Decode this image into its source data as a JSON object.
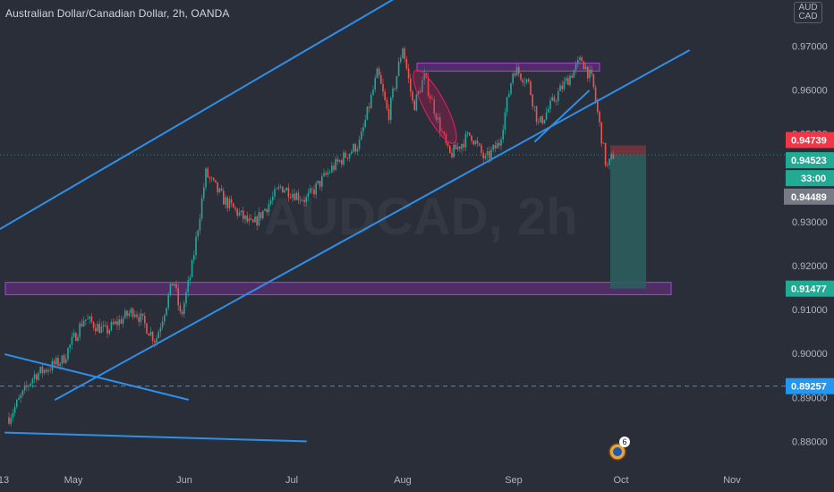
{
  "header": {
    "title": "Australian Dollar/Canadian Dollar, 2h, OANDA",
    "currency_lines": [
      "AUD",
      "CAD"
    ]
  },
  "watermark": "AUDCAD, 2h",
  "colors": {
    "background": "#2a2e39",
    "axis_text": "#b2b5be",
    "trendline": "#2f8fe8",
    "zone_fill": "#7a2f9a",
    "zone_stroke": "#b040e0",
    "candle_up": "#26a69a",
    "candle_down": "#ef5350",
    "stop_zone": "#7a3540",
    "target_zone": "#2e5d5e",
    "badge_red": "#f23645",
    "badge_teal": "#22ab94",
    "badge_gray": "#787b86",
    "badge_blue": "#2196f3"
  },
  "chart_data": {
    "type": "candlestick",
    "symbol": "AUDCAD",
    "timeframe": "2h",
    "y_axis": {
      "ticks": [
        "0.97000",
        "0.96000",
        "0.95000",
        "0.94000",
        "0.93000",
        "0.92000",
        "0.91000",
        "0.90000",
        "0.89000",
        "0.88000"
      ],
      "range": [
        0.8755,
        0.9755
      ]
    },
    "x_axis": {
      "labels": [
        "13",
        "May",
        "Jun",
        "Jul",
        "Aug",
        "Sep",
        "Oct",
        "Nov"
      ]
    },
    "price_path": [
      [
        "Apr 13",
        0.8855
      ],
      [
        "Apr 20",
        0.895
      ],
      [
        "Apr 28",
        0.8985
      ],
      [
        "May 4",
        0.908
      ],
      [
        "May 10",
        0.905
      ],
      [
        "May 18",
        0.91
      ],
      [
        "May 24",
        0.903
      ],
      [
        "May 29",
        0.917
      ],
      [
        "May 31",
        0.908
      ],
      [
        "Jun 3",
        0.919
      ],
      [
        "Jun 5",
        0.93
      ],
      [
        "Jun 7",
        0.941
      ],
      [
        "Jun 12",
        0.935
      ],
      [
        "Jun 20",
        0.929
      ],
      [
        "Jun 28",
        0.938
      ],
      [
        "Jul 5",
        0.935
      ],
      [
        "Jul 12",
        0.942
      ],
      [
        "Jul 20",
        0.948
      ],
      [
        "Jul 25",
        0.964
      ],
      [
        "Jul 28",
        0.954
      ],
      [
        "Aug 1",
        0.97
      ],
      [
        "Aug 4",
        0.956
      ],
      [
        "Aug 7",
        0.963
      ],
      [
        "Aug 14",
        0.945
      ],
      [
        "Aug 20",
        0.95
      ],
      [
        "Aug 24",
        0.944
      ],
      [
        "Aug 28",
        0.948
      ],
      [
        "Sep 1",
        0.965
      ],
      [
        "Sep 5",
        0.962
      ],
      [
        "Sep 8",
        0.952
      ],
      [
        "Sep 14",
        0.96
      ],
      [
        "Sep 20",
        0.967
      ],
      [
        "Sep 23",
        0.962
      ],
      [
        "Sep 25",
        0.952
      ],
      [
        "Sep 27",
        0.942
      ],
      [
        "Sep 29",
        0.9455
      ]
    ],
    "channel_upper": [
      [
        "Mar 25",
        0.9205
      ],
      [
        "Sep 7",
        0.9995
      ]
    ],
    "channel_lower": [
      [
        "Apr 26",
        0.8895
      ],
      [
        "Oct 20",
        0.969
      ]
    ],
    "minor_trendline": [
      [
        "Sep 7",
        0.9483
      ],
      [
        "Sep 22",
        0.9598
      ]
    ],
    "downtrend_line": [
      [
        "Apr 12",
        0.8998
      ],
      [
        "Jun 2",
        0.8895
      ]
    ],
    "bottom_line": [
      [
        "Apr 12",
        0.882
      ],
      [
        "Jul 5",
        0.88
      ]
    ],
    "resistance_zone": {
      "from": "Aug 5",
      "to": "Sep 25",
      "low": 0.9645,
      "high": 0.9655
    },
    "support_zone": {
      "from": "Apr 12",
      "to": "Oct 15",
      "low": 0.9134,
      "high": 0.9162
    },
    "highlight_ellipse": {
      "center": [
        "Aug 10",
        0.9562
      ],
      "note": "tilted oval around drop from 0.9650"
    },
    "short_position": {
      "from": "Sep 28",
      "to": "Oct 8",
      "entry": 0.94523,
      "stop": 0.94739,
      "target": 0.91477
    },
    "dotted_price_line": 0.94523,
    "dashed_level": 0.89257,
    "price_badges": [
      {
        "label": "0.94739",
        "value": 0.94739,
        "kind": "stop"
      },
      {
        "label": "0.94523",
        "value": 0.94523,
        "kind": "price"
      },
      {
        "label": "33:00",
        "value": 0.94523,
        "kind": "countdown"
      },
      {
        "label": "0.94489",
        "value": 0.94489,
        "kind": "bid"
      },
      {
        "label": "0.91477",
        "value": 0.91477,
        "kind": "target"
      },
      {
        "label": "0.89257",
        "value": 0.89257,
        "kind": "level"
      }
    ],
    "event_marker": {
      "date": "Sep 29",
      "count": "6"
    }
  }
}
